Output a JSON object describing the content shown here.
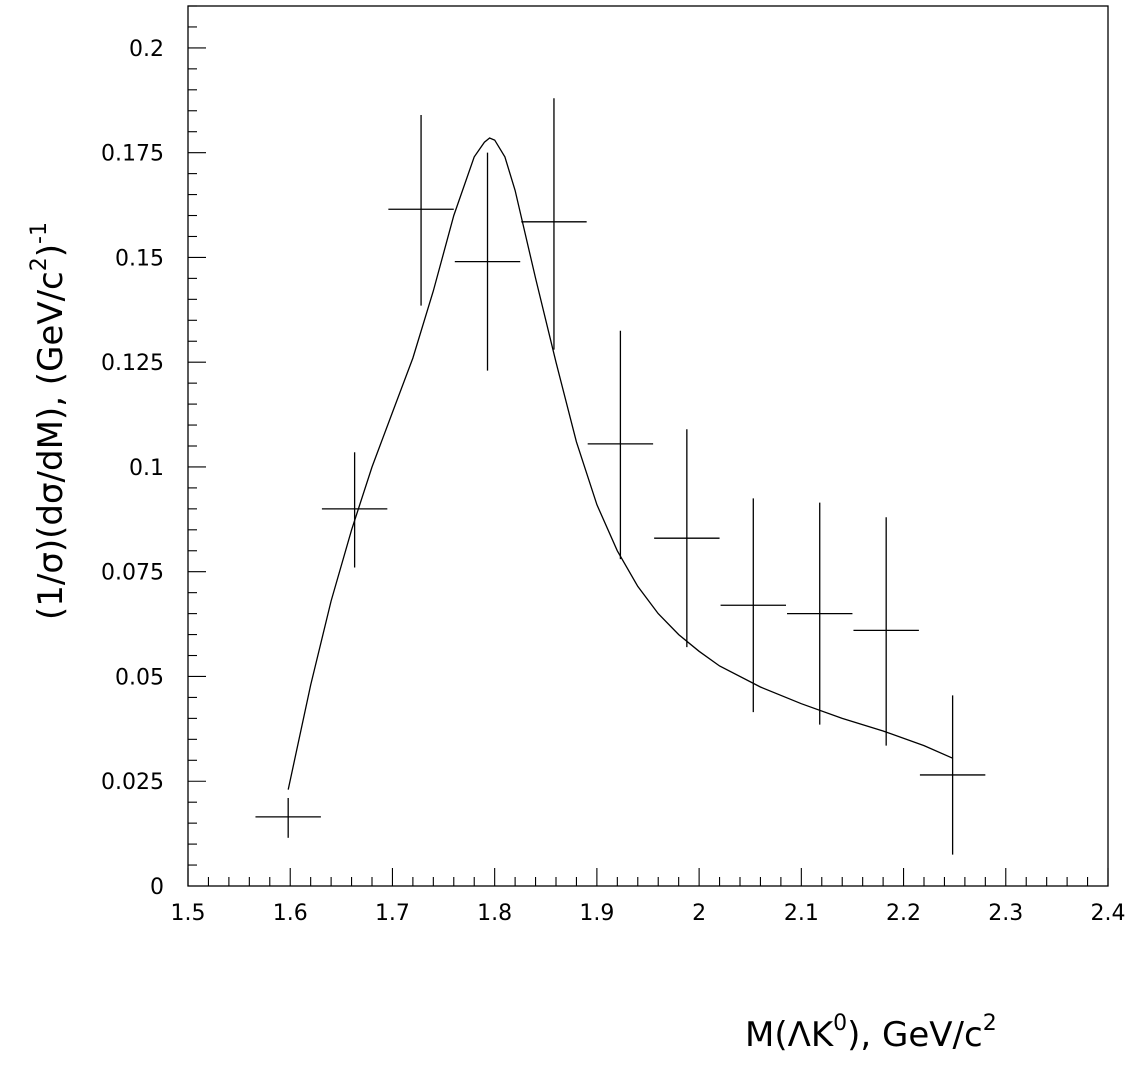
{
  "chart_data": {
    "type": "scatter",
    "title": "",
    "xlabel": {
      "prefix": "M(ΛK",
      "sup": "0",
      "middle": "), GeV/c",
      "sup2": "2"
    },
    "ylabel": {
      "prefix": "(1/σ)(dσ/dM), (GeV/c",
      "sup": "2",
      "close": ")",
      "sup2": "-1"
    },
    "xlim": [
      1.5,
      2.4
    ],
    "ylim": [
      0,
      0.21
    ],
    "grid": false,
    "x_ticks": [
      "1.5",
      "1.6",
      "1.7",
      "1.8",
      "1.9",
      "2",
      "2.1",
      "2.2",
      "2.3",
      "2.4"
    ],
    "y_ticks": [
      "0",
      "0.025",
      "0.05",
      "0.075",
      "0.1",
      "0.125",
      "0.15",
      "0.175",
      "0.2"
    ],
    "series": [
      {
        "type": "errorbar",
        "points": [
          {
            "x": 1.598,
            "y": 0.0165,
            "xerr": 0.032,
            "ylo": 0.0115,
            "yhi": 0.021
          },
          {
            "x": 1.663,
            "y": 0.09,
            "xerr": 0.032,
            "ylo": 0.076,
            "yhi": 0.1035
          },
          {
            "x": 1.728,
            "y": 0.1615,
            "xerr": 0.032,
            "ylo": 0.1385,
            "yhi": 0.184
          },
          {
            "x": 1.793,
            "y": 0.149,
            "xerr": 0.032,
            "ylo": 0.123,
            "yhi": 0.175
          },
          {
            "x": 1.858,
            "y": 0.1585,
            "xerr": 0.032,
            "ylo": 0.128,
            "yhi": 0.188
          },
          {
            "x": 1.923,
            "y": 0.1055,
            "xerr": 0.032,
            "ylo": 0.078,
            "yhi": 0.1325
          },
          {
            "x": 1.988,
            "y": 0.083,
            "xerr": 0.032,
            "ylo": 0.057,
            "yhi": 0.109
          },
          {
            "x": 2.053,
            "y": 0.067,
            "xerr": 0.032,
            "ylo": 0.0415,
            "yhi": 0.0925
          },
          {
            "x": 2.118,
            "y": 0.065,
            "xerr": 0.032,
            "ylo": 0.0385,
            "yhi": 0.0915
          },
          {
            "x": 2.183,
            "y": 0.061,
            "xerr": 0.032,
            "ylo": 0.0335,
            "yhi": 0.088
          },
          {
            "x": 2.248,
            "y": 0.0265,
            "xerr": 0.032,
            "ylo": 0.0075,
            "yhi": 0.0455
          }
        ]
      },
      {
        "type": "line",
        "x": [
          1.598,
          1.62,
          1.64,
          1.66,
          1.68,
          1.7,
          1.72,
          1.74,
          1.76,
          1.78,
          1.79,
          1.795,
          1.8,
          1.81,
          1.82,
          1.84,
          1.86,
          1.88,
          1.9,
          1.92,
          1.94,
          1.96,
          1.98,
          2.0,
          2.02,
          2.06,
          2.1,
          2.14,
          2.18,
          2.22,
          2.248
        ],
        "y": [
          0.023,
          0.048,
          0.068,
          0.085,
          0.1,
          0.113,
          0.126,
          0.142,
          0.16,
          0.174,
          0.1775,
          0.1785,
          0.178,
          0.174,
          0.166,
          0.145,
          0.125,
          0.106,
          0.091,
          0.08,
          0.0715,
          0.065,
          0.06,
          0.056,
          0.0525,
          0.0475,
          0.0435,
          0.04,
          0.037,
          0.0335,
          0.0305
        ]
      }
    ]
  }
}
